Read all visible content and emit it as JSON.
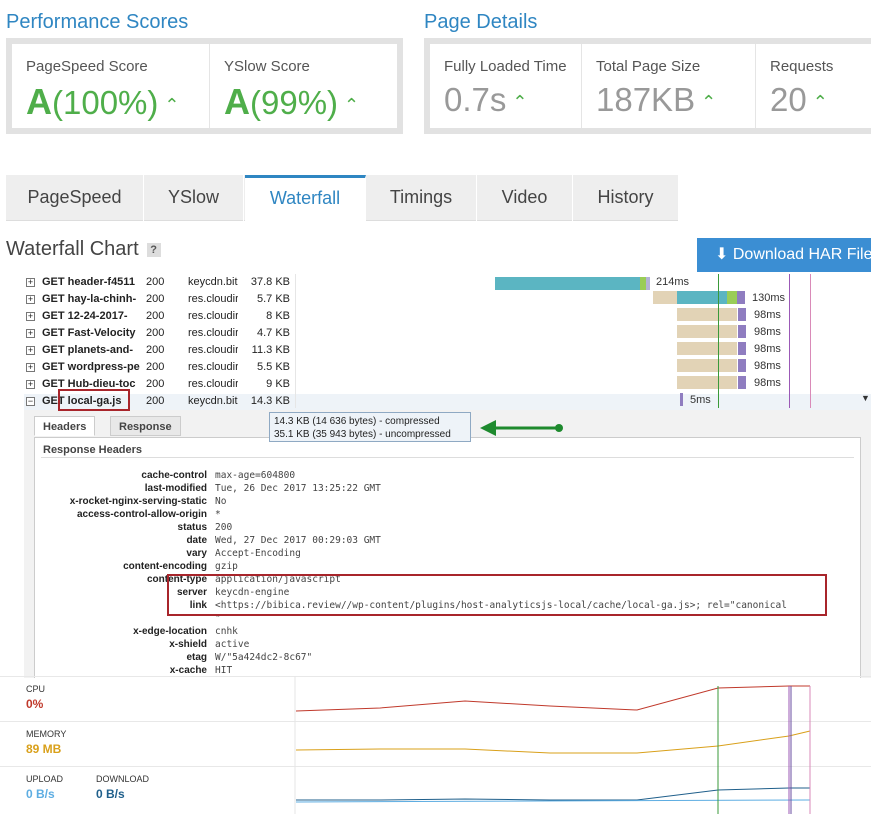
{
  "performance": {
    "title": "Performance Scores",
    "pagespeed": {
      "label": "PageSpeed Score",
      "grade": "A",
      "value": "(100%)"
    },
    "yslow": {
      "label": "YSlow Score",
      "grade": "A",
      "value": "(99%)"
    }
  },
  "details": {
    "title": "Page Details",
    "loaded": {
      "label": "Fully Loaded Time",
      "value": "0.7s"
    },
    "size": {
      "label": "Total Page Size",
      "value": "187KB"
    },
    "requests": {
      "label": "Requests",
      "value": "20"
    }
  },
  "tabs": [
    "PageSpeed",
    "YSlow",
    "Waterfall",
    "Timings",
    "Video",
    "History"
  ],
  "active_tab": "Waterfall",
  "waterfall": {
    "title": "Waterfall Chart",
    "help": "?",
    "download_label": "Download HAR File",
    "rows": [
      {
        "url": "GET header-f4511",
        "status": "200",
        "domain": "keycdn.bit",
        "size": "37.8 KB",
        "time": "214ms",
        "expanded": false
      },
      {
        "url": "GET hay-la-chinh-",
        "status": "200",
        "domain": "res.cloudir",
        "size": "5.7 KB",
        "time": "130ms",
        "expanded": false
      },
      {
        "url": "GET 12-24-2017-",
        "status": "200",
        "domain": "res.cloudir",
        "size": "8 KB",
        "time": "98ms",
        "expanded": false
      },
      {
        "url": "GET Fast-Velocity",
        "status": "200",
        "domain": "res.cloudir",
        "size": "4.7 KB",
        "time": "98ms",
        "expanded": false
      },
      {
        "url": "GET planets-and-",
        "status": "200",
        "domain": "res.cloudir",
        "size": "11.3 KB",
        "time": "98ms",
        "expanded": false
      },
      {
        "url": "GET wordpress-pe",
        "status": "200",
        "domain": "res.cloudir",
        "size": "5.5 KB",
        "time": "98ms",
        "expanded": false
      },
      {
        "url": "GET Hub-dieu-toc",
        "status": "200",
        "domain": "res.cloudir",
        "size": "9 KB",
        "time": "98ms",
        "expanded": false
      },
      {
        "url": "GET local-ga.js",
        "status": "200",
        "domain": "keycdn.bit",
        "size": "14.3 KB",
        "time": "5ms",
        "expanded": true
      }
    ],
    "tooltip": {
      "compressed": "14.3 KB (14 636 bytes) - compressed",
      "uncompressed": "35.1 KB (35 943 bytes) - uncompressed"
    },
    "detail_tabs": [
      "Headers",
      "Response"
    ],
    "response_headers_title": "Response Headers",
    "headers": [
      {
        "k": "cache-control",
        "v": "max-age=604800"
      },
      {
        "k": "last-modified",
        "v": "Tue, 26 Dec 2017 13:25:22 GMT"
      },
      {
        "k": "x-rocket-nginx-serving-static",
        "v": "No"
      },
      {
        "k": "access-control-allow-origin",
        "v": "*"
      },
      {
        "k": "status",
        "v": "200"
      },
      {
        "k": "date",
        "v": "Wed, 27 Dec 2017 00:29:03 GMT"
      },
      {
        "k": "vary",
        "v": "Accept-Encoding"
      },
      {
        "k": "content-encoding",
        "v": "gzip"
      },
      {
        "k": "content-type",
        "v": "application/javascript"
      },
      {
        "k": "server",
        "v": "keycdn-engine"
      },
      {
        "k": "link",
        "v": "<https://bibica.review//wp-content/plugins/host-analyticsjs-local/cache/local-ga.js>; rel=\"canonical"
      },
      {
        "k": "",
        "v": "\""
      },
      {
        "k": "x-edge-location",
        "v": "cnhk"
      },
      {
        "k": "x-shield",
        "v": "active"
      },
      {
        "k": "etag",
        "v": "W/\"5a424dc2-8c67\""
      },
      {
        "k": "x-cache",
        "v": "HIT"
      }
    ]
  },
  "metrics": {
    "cpu": {
      "label": "CPU",
      "value": "0%",
      "color": "#c0392b"
    },
    "memory": {
      "label": "MEMORY",
      "value": "89 MB",
      "color": "#d9a01a"
    },
    "upload": {
      "label": "UPLOAD",
      "value": "0 B/s",
      "color": "#5dade2"
    },
    "download": {
      "label": "DOWNLOAD",
      "value": "0 B/s",
      "color": "#1f5f8b"
    }
  },
  "colors": {
    "accent": "#2f86c2",
    "grade": "#4fae4a",
    "annotation": "#a8252b",
    "arrow": "#1e8a2e"
  }
}
